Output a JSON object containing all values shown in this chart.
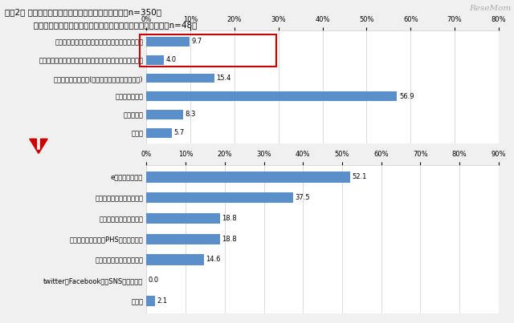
{
  "title_line1": "【図2】 上：震災時の学校と保護者間の連絡の有無（n=350）",
  "title_line2": "           下：震災時に学校から保護者に連絡があった際の連絡手段（n=48）",
  "watermark": "ReseMom",
  "top_chart": {
    "categories": [
      "お子様が、学校に待機しているとの連絡があった",
      "学校から、お子様が無事かどうかを確認する連絡があった",
      "連絡が取れなかった(電波状況の不具合も含めて)",
      "連絡はなかった",
      "わからない",
      "その他"
    ],
    "values": [
      9.7,
      4.0,
      15.4,
      56.9,
      8.3,
      5.7
    ],
    "xlim": [
      0,
      80
    ],
    "xticks": [
      0,
      10,
      20,
      30,
      40,
      50,
      60,
      70,
      80
    ],
    "xtick_labels": [
      "0%",
      "10%",
      "20%",
      "30%",
      "40%",
      "50%",
      "60%",
      "70%",
      "80%"
    ],
    "bar_color": "#5B8FC9",
    "highlighted_indices": [
      0,
      1
    ]
  },
  "bottom_chart": {
    "categories": [
      "eメールでの連絡",
      "担任から自宅への電話連絡",
      "リレー方式の電話連絡網",
      "担任から携帯電話・PHSへの電話連絡",
      "学校ホームページへの掲載",
      "twitterやFacebook等のSNSによる連絡",
      "その他"
    ],
    "values": [
      52.1,
      37.5,
      18.8,
      18.8,
      14.6,
      0.0,
      2.1
    ],
    "xlim": [
      0,
      90
    ],
    "xticks": [
      0,
      10,
      20,
      30,
      40,
      50,
      60,
      70,
      80,
      90
    ],
    "xtick_labels": [
      "0%",
      "10%",
      "20%",
      "30%",
      "40%",
      "50%",
      "60%",
      "70%",
      "80%",
      "90%"
    ],
    "bar_color": "#5B8FC9"
  },
  "bg_color": "#f0f0f0",
  "chart_bg": "#ffffff",
  "text_color": "#000000",
  "highlight_box_color": "#cc0000",
  "arrow_color": "#cc0000",
  "font_size_title": 7.5,
  "font_size_tick": 6.0,
  "font_size_label": 6.0,
  "font_size_value": 6.0
}
